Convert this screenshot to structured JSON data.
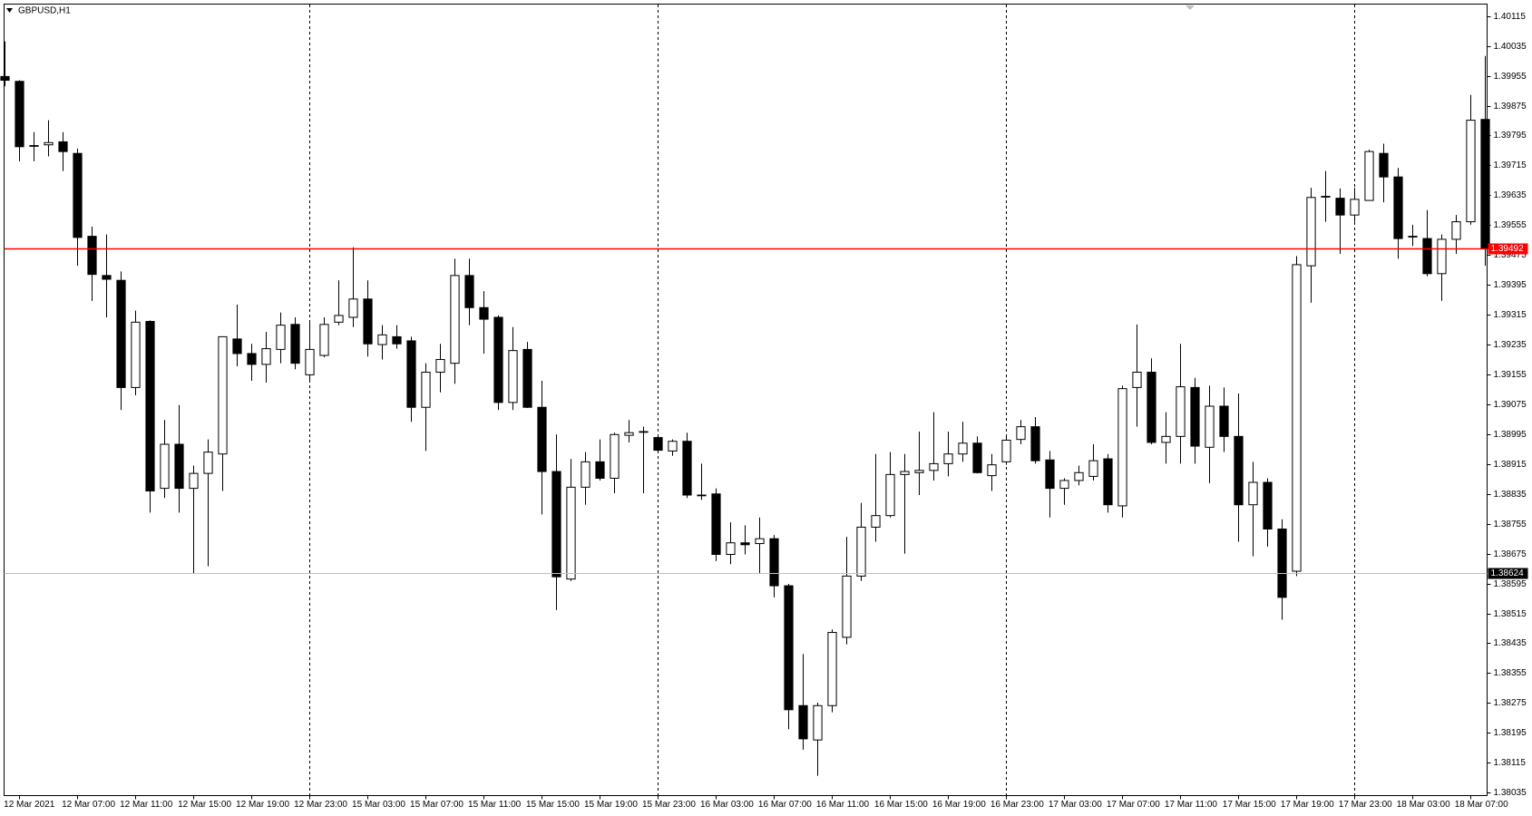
{
  "chart_data": {
    "type": "candlestick",
    "title": "GBPUSD,H1",
    "categories": [
      null,
      "12 Mar 2021",
      null,
      null,
      null,
      "12 Mar 07:00",
      null,
      null,
      null,
      "12 Mar 11:00",
      null,
      null,
      null,
      "12 Mar 15:00",
      null,
      null,
      null,
      "12 Mar 19:00",
      null,
      null,
      null,
      "12 Mar 23:00",
      null,
      null,
      null,
      "15 Mar 03:00",
      null,
      null,
      null,
      "15 Mar 07:00",
      null,
      null,
      null,
      "15 Mar 11:00",
      null,
      null,
      null,
      "15 Mar 15:00",
      null,
      null,
      null,
      "15 Mar 19:00",
      null,
      null,
      null,
      "15 Mar 23:00",
      null,
      null,
      null,
      "16 Mar 03:00",
      null,
      null,
      null,
      "16 Mar 07:00",
      null,
      null,
      null,
      "16 Mar 11:00",
      null,
      null,
      null,
      "16 Mar 15:00",
      null,
      null,
      null,
      "16 Mar 19:00",
      null,
      null,
      null,
      "16 Mar 23:00",
      null,
      null,
      null,
      "17 Mar 03:00",
      null,
      null,
      null,
      "17 Mar 07:00",
      null,
      null,
      null,
      "17 Mar 11:00",
      null,
      null,
      null,
      "17 Mar 15:00",
      null,
      null,
      null,
      "17 Mar 19:00",
      null,
      null,
      null,
      "17 Mar 23:00",
      null,
      null,
      null,
      "18 Mar 03:00",
      null,
      null,
      null,
      "18 Mar 07:00",
      null
    ],
    "open": [
      1.39953,
      1.3994,
      1.39768,
      1.3977,
      1.39778,
      1.39747,
      1.39525,
      1.3942,
      1.39407,
      1.3912,
      1.39297,
      1.3885,
      1.38968,
      1.3885,
      1.3889,
      1.38942,
      1.3925,
      1.39211,
      1.39182,
      1.39222,
      1.39289,
      1.39154,
      1.39206,
      1.39295,
      1.39308,
      1.39357,
      1.39235,
      1.39256,
      1.39245,
      1.39067,
      1.39161,
      1.39185,
      1.3942,
      1.39334,
      1.39308,
      1.3908,
      1.39222,
      1.39067,
      1.38895,
      1.38607,
      1.38853,
      1.38921,
      1.38877,
      1.38992,
      1.39002,
      1.38986,
      1.3895,
      1.38976,
      1.38832,
      1.38835,
      1.38673,
      1.38704,
      1.38702,
      1.38715,
      1.38589,
      1.38268,
      1.38176,
      1.38268,
      1.38451,
      1.38615,
      1.38746,
      1.38777,
      1.38887,
      1.38892,
      1.38898,
      1.38916,
      1.38942,
      1.38971,
      1.38884,
      1.38921,
      1.38981,
      1.39015,
      1.38926,
      1.3885,
      1.38871,
      1.38882,
      1.38929,
      1.38803,
      1.3912,
      1.39161,
      1.38973,
      1.38989,
      1.3912,
      1.3896,
      1.3907,
      1.38989,
      1.38806,
      1.38866,
      1.38741,
      1.38628,
      1.39446,
      1.39632,
      1.39627,
      1.39582,
      1.39621,
      1.39747,
      1.39684,
      1.39525,
      1.39519,
      1.39425,
      1.39517,
      1.39564,
      1.39838
    ],
    "high": [
      1.40047,
      1.39943,
      1.39804,
      1.39836,
      1.39804,
      1.3976,
      1.39551,
      1.3953,
      1.39431,
      1.39326,
      1.393,
      1.39033,
      1.39073,
      1.38911,
      1.38981,
      1.39256,
      1.39342,
      1.39237,
      1.39269,
      1.39321,
      1.39308,
      1.39295,
      1.39308,
      1.39407,
      1.39496,
      1.39407,
      1.39287,
      1.39287,
      1.39256,
      1.39185,
      1.39237,
      1.39465,
      1.39465,
      1.39378,
      1.39313,
      1.39282,
      1.39242,
      1.39138,
      1.38994,
      1.38929,
      1.38947,
      1.38981,
      1.38999,
      1.39033,
      1.39015,
      1.38994,
      1.38981,
      1.38999,
      1.38916,
      1.3885,
      1.38759,
      1.38751,
      1.38772,
      1.38725,
      1.38594,
      1.38406,
      1.38276,
      1.38472,
      1.3872,
      1.38811,
      1.38942,
      1.38947,
      1.38942,
      1.39002,
      1.39054,
      1.39002,
      1.39028,
      1.38989,
      1.38942,
      1.38994,
      1.39033,
      1.39041,
      1.3895,
      1.38877,
      1.38911,
      1.38968,
      1.38942,
      1.39125,
      1.39289,
      1.39198,
      1.39054,
      1.39237,
      1.39146,
      1.39125,
      1.3912,
      1.39104,
      1.38921,
      1.38877,
      1.38767,
      1.39472,
      1.39655,
      1.397,
      1.39653,
      1.39655,
      1.39757,
      1.39773,
      1.39708,
      1.39556,
      1.39595,
      1.3953,
      1.39582,
      1.39904,
      1.40008
    ],
    "low": [
      1.39927,
      1.39726,
      1.39726,
      1.39739,
      1.397,
      1.39446,
      1.39352,
      1.39308,
      1.3906,
      1.39099,
      1.38785,
      1.38824,
      1.38785,
      1.38623,
      1.38641,
      1.38843,
      1.39177,
      1.39138,
      1.39133,
      1.39185,
      1.39169,
      1.39133,
      1.39201,
      1.39287,
      1.39282,
      1.39203,
      1.39195,
      1.39224,
      1.39028,
      1.3895,
      1.39107,
      1.3913,
      1.39287,
      1.39211,
      1.3906,
      1.3906,
      1.39065,
      1.3878,
      1.38524,
      1.38602,
      1.38806,
      1.38871,
      1.38837,
      1.38973,
      1.38837,
      1.3895,
      1.38937,
      1.38824,
      1.38819,
      1.38655,
      1.38647,
      1.38673,
      1.38621,
      1.38558,
      1.38205,
      1.3815,
      1.3808,
      1.3825,
      1.38432,
      1.38602,
      1.38707,
      1.38772,
      1.38675,
      1.38832,
      1.38871,
      1.38882,
      1.38921,
      1.3889,
      1.38843,
      1.38913,
      1.38968,
      1.38916,
      1.38772,
      1.38806,
      1.38858,
      1.38871,
      1.38785,
      1.38772,
      1.39015,
      1.38968,
      1.38916,
      1.38916,
      1.38916,
      1.38864,
      1.38947,
      1.38707,
      1.38668,
      1.38694,
      1.38498,
      1.38615,
      1.39347,
      1.39564,
      1.39478,
      1.39564,
      1.39621,
      1.39616,
      1.39465,
      1.39499,
      1.39418,
      1.39352,
      1.39478,
      1.39556,
      1.39446
    ],
    "close": [
      1.39943,
      1.39765,
      1.39768,
      1.39776,
      1.39752,
      1.39522,
      1.39423,
      1.3941,
      1.3912,
      1.39295,
      1.38843,
      1.38968,
      1.3885,
      1.3889,
      1.38947,
      1.39256,
      1.39211,
      1.39182,
      1.39224,
      1.39287,
      1.39185,
      1.39222,
      1.39289,
      1.39313,
      1.39357,
      1.39237,
      1.39261,
      1.39237,
      1.39067,
      1.39161,
      1.39195,
      1.3942,
      1.39334,
      1.39303,
      1.3908,
      1.39219,
      1.39067,
      1.38895,
      1.38613,
      1.38853,
      1.38921,
      1.38877,
      1.38994,
      1.38999,
      1.39002,
      1.38952,
      1.38976,
      1.38832,
      1.3883,
      1.38673,
      1.38704,
      1.38699,
      1.38715,
      1.38589,
      1.38257,
      1.38179,
      1.38268,
      1.38464,
      1.38615,
      1.38746,
      1.38777,
      1.38887,
      1.38895,
      1.38898,
      1.38916,
      1.38942,
      1.38971,
      1.38892,
      1.38913,
      1.38979,
      1.39015,
      1.38924,
      1.3885,
      1.38871,
      1.38892,
      1.38924,
      1.38806,
      1.39117,
      1.39161,
      1.38973,
      1.38989,
      1.39122,
      1.38963,
      1.3907,
      1.38989,
      1.38806,
      1.38866,
      1.38741,
      1.38558,
      1.39449,
      1.39629,
      1.39632,
      1.39582,
      1.39624,
      1.39752,
      1.39684,
      1.39519,
      1.39525,
      1.39425,
      1.39517,
      1.39564,
      1.39836,
      1.39492
    ],
    "bull_color": "#ffffff",
    "bear_color": "#000000",
    "ylim": [
      1.38027,
      1.40147
    ],
    "yticks": [
      1.40115,
      1.40035,
      1.39955,
      1.39875,
      1.39795,
      1.39715,
      1.39635,
      1.39555,
      1.39475,
      1.39395,
      1.39315,
      1.39235,
      1.39155,
      1.39075,
      1.38995,
      1.38915,
      1.38835,
      1.38755,
      1.38675,
      1.38595,
      1.38515,
      1.38435,
      1.38355,
      1.38275,
      1.38195,
      1.38115,
      1.38035
    ],
    "price_lines": [
      {
        "value": 1.39492,
        "color": "#ff0000"
      },
      {
        "value": 1.38624,
        "color": "#c0c0c0"
      }
    ]
  }
}
